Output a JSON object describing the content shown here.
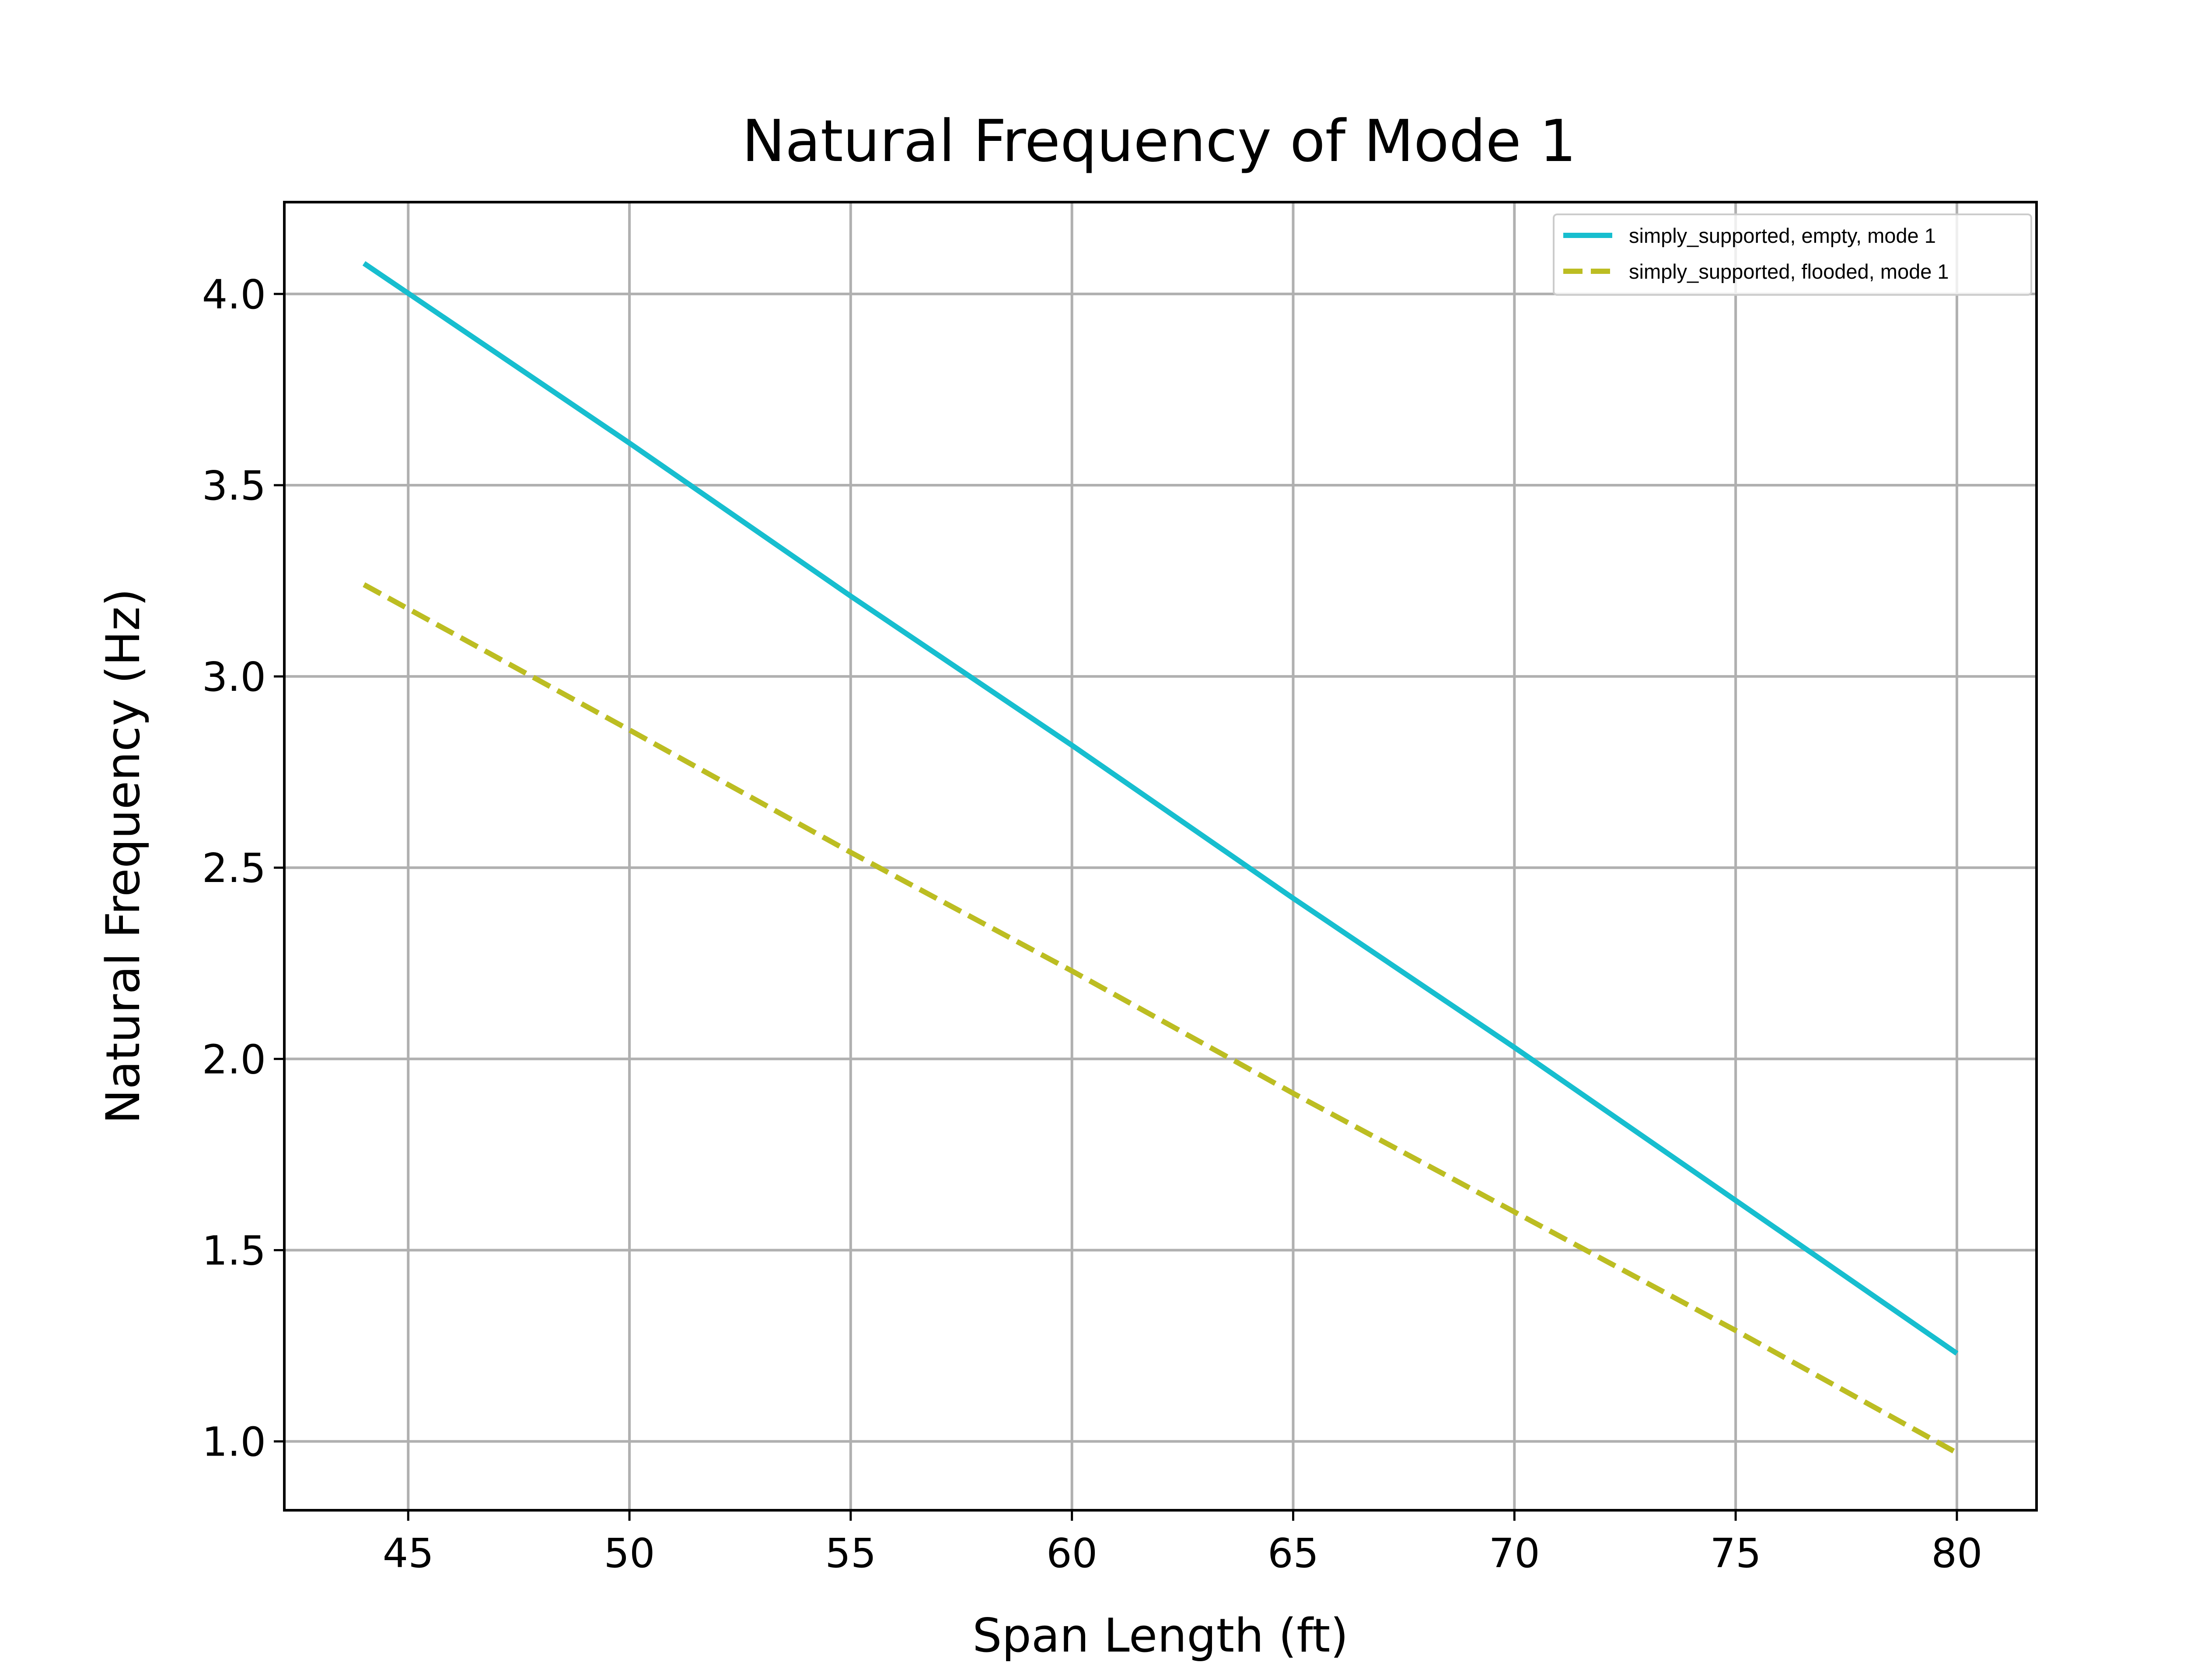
{
  "chart_data": {
    "type": "line",
    "title": "Natural Frequency of Mode 1",
    "xlabel": "Span Length (ft)",
    "ylabel": "Natural Frequency (Hz)",
    "xlim": [
      42.2,
      81.8
    ],
    "ylim": [
      0.82,
      4.24
    ],
    "xticks": [
      45,
      50,
      55,
      60,
      65,
      70,
      75,
      80
    ],
    "yticks": [
      1.0,
      1.5,
      2.0,
      2.5,
      3.0,
      3.5,
      4.0
    ],
    "grid": true,
    "legend": "top-right",
    "series": [
      {
        "name": "simply_supported, empty, mode 1",
        "color": "#17becf",
        "dash": "solid",
        "x": [
          44,
          50,
          55,
          60,
          65,
          70,
          75,
          80
        ],
        "y": [
          4.08,
          3.61,
          3.21,
          2.82,
          2.42,
          2.03,
          1.63,
          1.23
        ]
      },
      {
        "name": "simply_supported, flooded, mode 1",
        "color": "#bcbd22",
        "dash": "dashed",
        "x": [
          44,
          50,
          55,
          60,
          65,
          70,
          75,
          80
        ],
        "y": [
          3.24,
          2.86,
          2.54,
          2.23,
          1.91,
          1.6,
          1.29,
          0.97
        ]
      }
    ]
  }
}
